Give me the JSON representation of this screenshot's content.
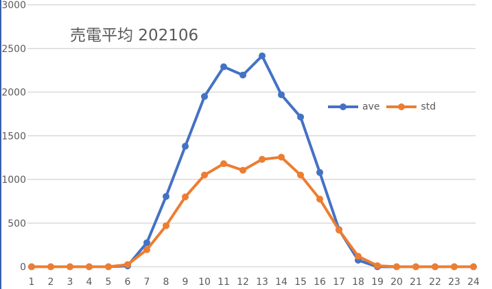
{
  "chart_data": {
    "type": "line",
    "title": "売電平均 202106",
    "xlabel": "",
    "ylabel": "",
    "x": [
      1,
      2,
      3,
      4,
      5,
      6,
      7,
      8,
      9,
      10,
      11,
      12,
      13,
      14,
      15,
      16,
      17,
      18,
      19,
      20,
      21,
      22,
      23,
      24
    ],
    "ylim": [
      0,
      3000
    ],
    "yticks": [
      0,
      500,
      1000,
      1500,
      2000,
      2500,
      3000
    ],
    "grid": true,
    "legend_position": "upper right (inside plot)",
    "series": [
      {
        "name": "ave",
        "color": "#4472c4",
        "values": [
          0,
          0,
          0,
          0,
          0,
          10,
          275,
          805,
          1380,
          1950,
          2290,
          2195,
          2415,
          1970,
          1715,
          1080,
          425,
          75,
          0,
          0,
          0,
          0,
          0,
          0
        ]
      },
      {
        "name": "std",
        "color": "#ed7d31",
        "values": [
          0,
          0,
          0,
          0,
          0,
          25,
          195,
          470,
          800,
          1050,
          1180,
          1105,
          1230,
          1255,
          1050,
          775,
          420,
          120,
          12,
          0,
          0,
          0,
          0,
          0
        ]
      }
    ]
  },
  "legend": {
    "items": [
      {
        "label": "ave",
        "color": "#4472c4"
      },
      {
        "label": "std",
        "color": "#ed7d31"
      }
    ]
  }
}
